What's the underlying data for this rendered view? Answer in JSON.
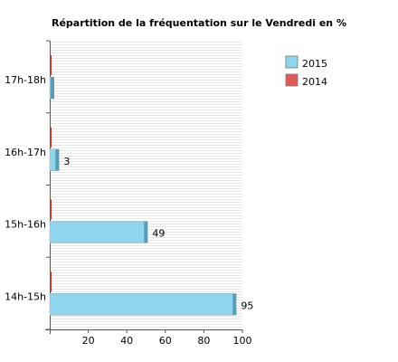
{
  "chart_data": {
    "type": "bar",
    "orientation": "horizontal",
    "title": "Répartition de la fréquentation sur le Vendredi en %",
    "categories": [
      "17h-18h",
      "16h-17h",
      "15h-16h",
      "14h-15h"
    ],
    "series": [
      {
        "name": "2015",
        "values": [
          0,
          3,
          49,
          95
        ],
        "color": "#91d5ed",
        "labels": [
          "",
          "3",
          "49",
          "95"
        ]
      },
      {
        "name": "2014",
        "values": [
          0,
          0,
          0,
          0
        ],
        "color": "#e05a5a"
      }
    ],
    "xlim": [
      0,
      100
    ],
    "x_ticks": [
      "20",
      "40",
      "60",
      "80",
      "100"
    ],
    "x_tick_values": [
      20,
      40,
      60,
      80,
      100
    ],
    "xlabel": "",
    "ylabel": "",
    "grid": "horizontal stripes",
    "legend_position": "top-right",
    "colors": {
      "bar_2015": "#91d5ed",
      "bar_2015_edge": "#5a9bb8",
      "bar_2014": "#c0392b",
      "legend_2014": "#e05a5a",
      "grid": "#e6e6e6"
    }
  }
}
